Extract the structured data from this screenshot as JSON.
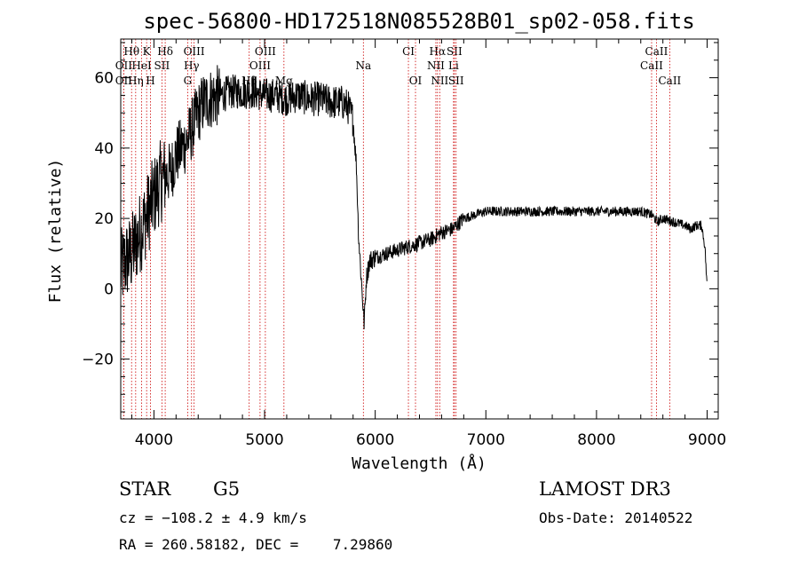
{
  "title": "spec-56800-HD172518N085528B01_sp02-058.fits",
  "footer": {
    "class_label": "STAR",
    "subclass": "G5",
    "survey": "LAMOST DR3",
    "cz": "cz = −108.2 ± 4.9 km/s",
    "obs_date": "Obs-Date: 20140522",
    "coords": "RA = 260.58182, DEC =    7.29860"
  },
  "chart_data": {
    "type": "line",
    "title": "spec-56800-HD172518N085528B01_sp02-058.fits",
    "xlabel": "Wavelength (Å)",
    "ylabel": "Flux (relative)",
    "xlim": [
      3700,
      9100
    ],
    "ylim": [
      -37,
      71
    ],
    "x_ticks": [
      4000,
      5000,
      6000,
      7000,
      8000,
      9000
    ],
    "x_tick_labels": [
      "4000",
      "5000",
      "6000",
      "7000",
      "8000",
      "9000"
    ],
    "y_ticks": [
      -20,
      0,
      20,
      40,
      60
    ],
    "y_tick_labels": [
      "−20",
      "0",
      "20",
      "40",
      "60"
    ],
    "grid": false,
    "line_color": "#000000",
    "marker_color": "#cc0000",
    "spectrum_anchors": [
      [
        3700,
        5
      ],
      [
        3750,
        8
      ],
      [
        3800,
        10
      ],
      [
        3850,
        14
      ],
      [
        3900,
        18
      ],
      [
        3950,
        22
      ],
      [
        4000,
        26
      ],
      [
        4050,
        30
      ],
      [
        4100,
        32
      ],
      [
        4150,
        33
      ],
      [
        4200,
        38
      ],
      [
        4250,
        40
      ],
      [
        4300,
        42
      ],
      [
        4350,
        46
      ],
      [
        4400,
        50
      ],
      [
        4450,
        53
      ],
      [
        4500,
        54
      ],
      [
        4600,
        55
      ],
      [
        4700,
        56
      ],
      [
        4800,
        56
      ],
      [
        4900,
        56
      ],
      [
        5000,
        55
      ],
      [
        5100,
        55
      ],
      [
        5200,
        54
      ],
      [
        5300,
        55
      ],
      [
        5400,
        54
      ],
      [
        5500,
        54
      ],
      [
        5600,
        53
      ],
      [
        5700,
        53
      ],
      [
        5750,
        52
      ],
      [
        5800,
        48
      ],
      [
        5830,
        35
      ],
      [
        5850,
        15
      ],
      [
        5870,
        5
      ],
      [
        5880,
        0
      ],
      [
        5900,
        -10
      ],
      [
        5920,
        3
      ],
      [
        5950,
        8
      ],
      [
        6000,
        9
      ],
      [
        6100,
        10
      ],
      [
        6200,
        11
      ],
      [
        6300,
        12
      ],
      [
        6400,
        13
      ],
      [
        6500,
        14
      ],
      [
        6600,
        16
      ],
      [
        6700,
        17
      ],
      [
        6800,
        20
      ],
      [
        6900,
        21
      ],
      [
        7000,
        22
      ],
      [
        7200,
        22
      ],
      [
        7400,
        22
      ],
      [
        7600,
        22
      ],
      [
        7800,
        22
      ],
      [
        8000,
        22
      ],
      [
        8200,
        22
      ],
      [
        8400,
        22
      ],
      [
        8500,
        21
      ],
      [
        8550,
        19
      ],
      [
        8600,
        20
      ],
      [
        8700,
        19
      ],
      [
        8800,
        18
      ],
      [
        8850,
        17
      ],
      [
        8900,
        18
      ],
      [
        8950,
        18
      ],
      [
        8980,
        12
      ],
      [
        9000,
        0
      ]
    ],
    "line_markers": [
      {
        "label": "Hθ",
        "x": 3798,
        "row": 0
      },
      {
        "label": "K",
        "x": 3934,
        "row": 0
      },
      {
        "label": "Hδ",
        "x": 4102,
        "row": 0
      },
      {
        "label": "OIII",
        "x": 4363,
        "row": 0
      },
      {
        "label": "OIII",
        "x": 5007,
        "row": 0
      },
      {
        "label": "CI",
        "x": 6300,
        "row": 0
      },
      {
        "label": "Hα",
        "x": 6563,
        "row": 0
      },
      {
        "label": "SII",
        "x": 6716,
        "row": 0
      },
      {
        "label": "CaII",
        "x": 8542,
        "row": 0
      },
      {
        "label": "OII",
        "x": 3727,
        "row": 1
      },
      {
        "label": "HeI",
        "x": 3889,
        "row": 1
      },
      {
        "label": "SII",
        "x": 4072,
        "row": 1
      },
      {
        "label": "Hγ",
        "x": 4340,
        "row": 1
      },
      {
        "label": "OIII",
        "x": 4959,
        "row": 1
      },
      {
        "label": "Na",
        "x": 5893,
        "row": 1
      },
      {
        "label": "NII",
        "x": 6548,
        "row": 1
      },
      {
        "label": "Li",
        "x": 6708,
        "row": 1
      },
      {
        "label": "CaII",
        "x": 8498,
        "row": 1
      },
      {
        "label": "OII",
        "x": 3727,
        "row": 2
      },
      {
        "label": "Hη",
        "x": 3835,
        "row": 2
      },
      {
        "label": "H",
        "x": 3969,
        "row": 2
      },
      {
        "label": "G",
        "x": 4305,
        "row": 2
      },
      {
        "label": "Hβ",
        "x": 4861,
        "row": 2
      },
      {
        "label": "Mg",
        "x": 5175,
        "row": 2
      },
      {
        "label": "OI",
        "x": 6364,
        "row": 2
      },
      {
        "label": "NII",
        "x": 6583,
        "row": 2
      },
      {
        "label": "SII",
        "x": 6731,
        "row": 2
      },
      {
        "label": "CaII",
        "x": 8662,
        "row": 2
      }
    ]
  }
}
